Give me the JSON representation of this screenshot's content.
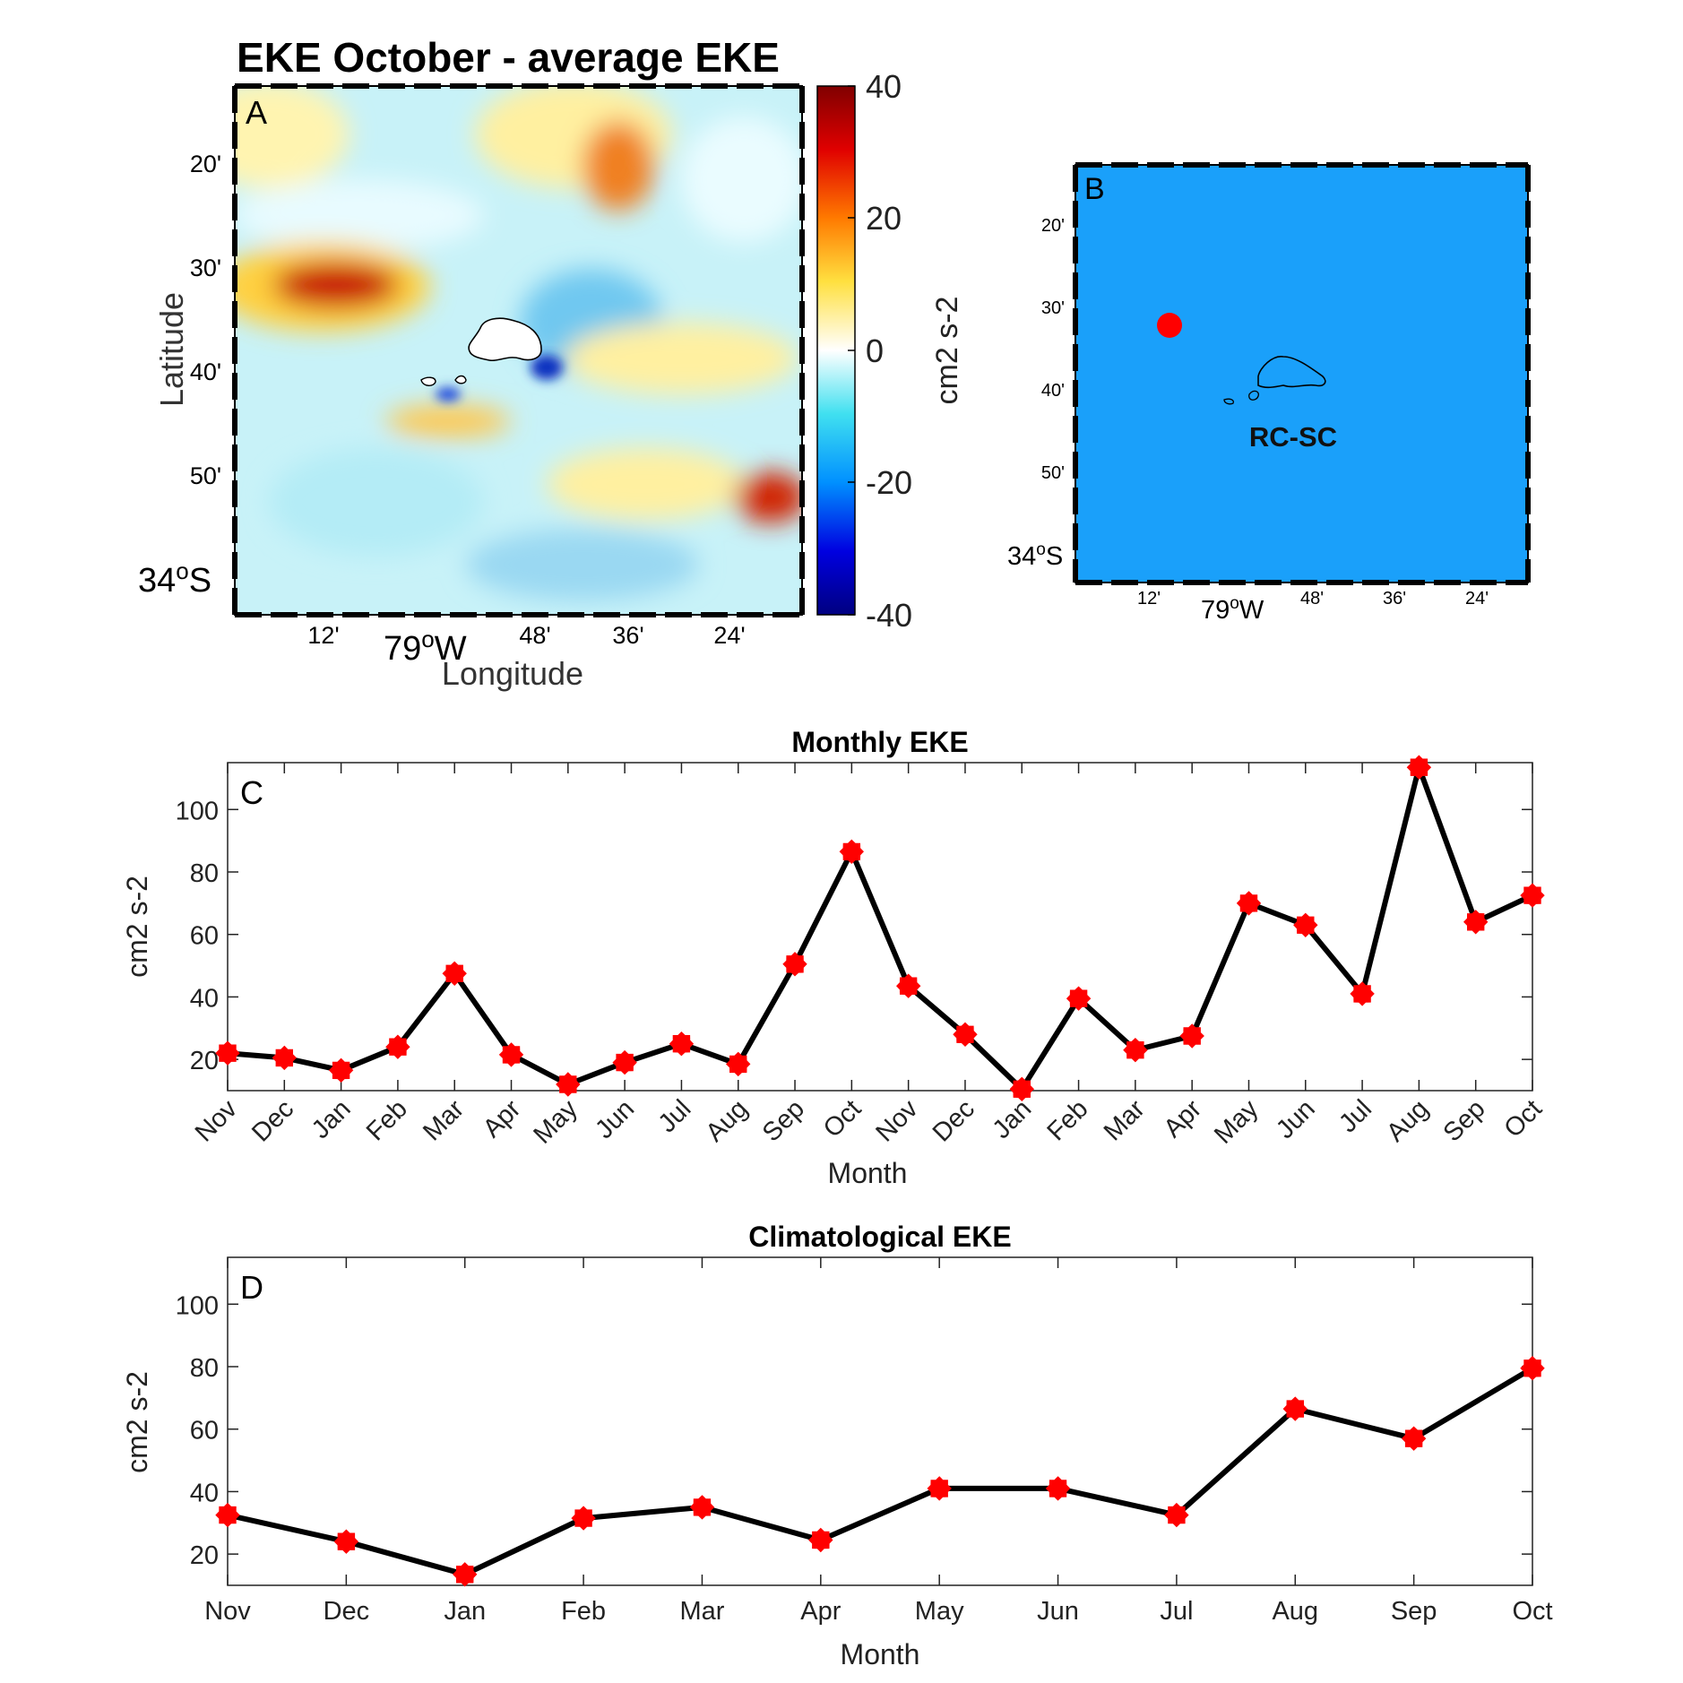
{
  "panelA": {
    "title": "EKE October - average EKE",
    "label": "A",
    "xlabel": "Longitude",
    "ylabel": "Latitude",
    "lat_ticks": [
      "20'",
      "30'",
      "40'",
      "50'"
    ],
    "lat_main": "34",
    "lat_main_deg": "o",
    "lat_main_hem": "S",
    "lon_ticks": [
      "12'",
      "48'",
      "36'",
      "24'"
    ],
    "lon_main": "79",
    "lon_main_deg": "o",
    "lon_main_hem": "W",
    "colorbar": {
      "label": "cm2 s-2",
      "ticks": [
        "40",
        "20",
        "0",
        "-20",
        "-40"
      ],
      "range": [
        -40,
        40
      ]
    }
  },
  "panelB": {
    "label": "B",
    "site_label": "RC-SC",
    "lat_ticks": [
      "20'",
      "30'",
      "40'",
      "50'"
    ],
    "lat_main": "34",
    "lat_main_deg": "o",
    "lat_main_hem": "S",
    "lon_ticks": [
      "12'",
      "48'",
      "36'",
      "24'"
    ],
    "lon_main": "79",
    "lon_main_deg": "o",
    "lon_main_hem": "W",
    "ocean_color": "#1aa0fa",
    "marker_color": "#ff0000"
  },
  "chart_data": [
    {
      "type": "line",
      "panel": "C",
      "title": "Monthly EKE",
      "label": "C",
      "xlabel": "Month",
      "ylabel": "cm2 s-2",
      "categories": [
        "Nov",
        "Dec",
        "Jan",
        "Feb",
        "Mar",
        "Apr",
        "May",
        "Jun",
        "Jul",
        "Aug",
        "Sep",
        "Oct",
        "Nov",
        "Dec",
        "Jan",
        "Feb",
        "Mar",
        "Apr",
        "May",
        "Jun",
        "Jul",
        "Aug",
        "Sep",
        "Oct"
      ],
      "values": [
        22,
        20.5,
        16.5,
        24,
        47.5,
        21.5,
        12,
        19,
        25,
        18.5,
        50.5,
        86.5,
        43.5,
        28,
        10.5,
        39.5,
        23,
        27.5,
        70,
        63,
        41,
        113.5,
        64,
        72.5
      ],
      "yticks": [
        "20",
        "40",
        "60",
        "80",
        "100"
      ],
      "ylim": [
        10,
        115
      ],
      "line_color": "#000000",
      "marker_color": "#ff0000"
    },
    {
      "type": "line",
      "panel": "D",
      "title": "Climatological EKE",
      "label": "D",
      "xlabel": "Month",
      "ylabel": "cm2 s-2",
      "categories": [
        "Nov",
        "Dec",
        "Jan",
        "Feb",
        "Mar",
        "Apr",
        "May",
        "Jun",
        "Jul",
        "Aug",
        "Sep",
        "Oct"
      ],
      "values": [
        32.5,
        24,
        13.5,
        31.5,
        35,
        24.5,
        41,
        41,
        32.5,
        66.5,
        57,
        79.5
      ],
      "yticks": [
        "20",
        "40",
        "60",
        "80",
        "100"
      ],
      "ylim": [
        10,
        115
      ],
      "line_color": "#000000",
      "marker_color": "#ff0000"
    }
  ]
}
